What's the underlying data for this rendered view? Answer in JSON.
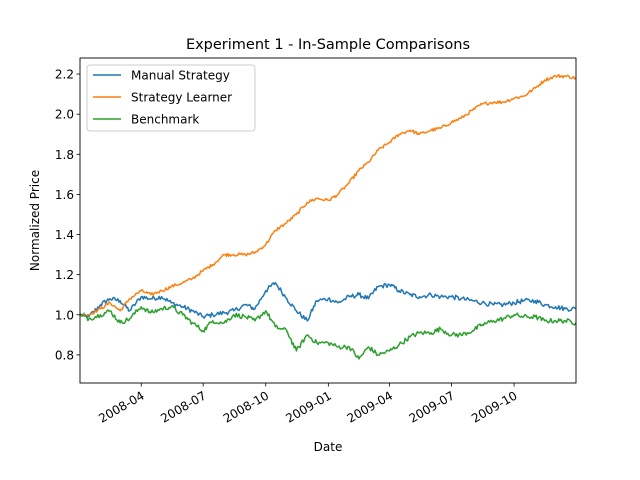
{
  "chart_data": {
    "type": "line",
    "title": "Experiment 1 - In-Sample Comparisons",
    "xlabel": "Date",
    "ylabel": "Normalized Price",
    "xlim": [
      "2008-01-02",
      "2009-12-31"
    ],
    "ylim": [
      0.66,
      2.28
    ],
    "grid": false,
    "legend_position": "upper-left",
    "x_ticks": [
      "2008-04",
      "2008-07",
      "2008-10",
      "2009-01",
      "2009-04",
      "2009-07",
      "2009-10"
    ],
    "y_ticks": [
      "0.8",
      "1.0",
      "1.2",
      "1.4",
      "1.6",
      "1.8",
      "2.0",
      "2.2"
    ],
    "x": [
      "2008-01-02",
      "2008-01-15",
      "2008-02-01",
      "2008-02-15",
      "2008-03-01",
      "2008-03-15",
      "2008-04-01",
      "2008-04-15",
      "2008-05-01",
      "2008-05-15",
      "2008-06-01",
      "2008-06-15",
      "2008-07-01",
      "2008-07-15",
      "2008-08-01",
      "2008-08-15",
      "2008-09-01",
      "2008-09-15",
      "2008-10-01",
      "2008-10-15",
      "2008-11-01",
      "2008-11-15",
      "2008-12-01",
      "2008-12-15",
      "2009-01-01",
      "2009-01-15",
      "2009-02-01",
      "2009-02-15",
      "2009-03-01",
      "2009-03-15",
      "2009-04-01",
      "2009-04-15",
      "2009-05-01",
      "2009-05-15",
      "2009-06-01",
      "2009-06-15",
      "2009-07-01",
      "2009-07-15",
      "2009-08-01",
      "2009-08-15",
      "2009-09-01",
      "2009-09-15",
      "2009-10-01",
      "2009-10-15",
      "2009-11-01",
      "2009-11-15",
      "2009-12-01",
      "2009-12-15",
      "2009-12-31"
    ],
    "series": [
      {
        "name": "Manual Strategy",
        "color": "#1f77b4",
        "values": [
          1.0,
          0.99,
          1.05,
          1.08,
          1.07,
          1.02,
          1.09,
          1.08,
          1.09,
          1.06,
          1.04,
          1.02,
          0.99,
          1.0,
          1.01,
          1.02,
          1.05,
          1.03,
          1.12,
          1.16,
          1.08,
          1.02,
          0.97,
          1.07,
          1.08,
          1.06,
          1.09,
          1.1,
          1.08,
          1.14,
          1.15,
          1.12,
          1.1,
          1.09,
          1.1,
          1.09,
          1.09,
          1.08,
          1.07,
          1.06,
          1.05,
          1.05,
          1.06,
          1.07,
          1.07,
          1.05,
          1.04,
          1.03,
          1.03
        ]
      },
      {
        "name": "Strategy Learner",
        "color": "#ff7f0e",
        "values": [
          1.0,
          1.0,
          1.03,
          1.06,
          1.02,
          1.08,
          1.12,
          1.1,
          1.12,
          1.14,
          1.16,
          1.18,
          1.22,
          1.25,
          1.3,
          1.3,
          1.3,
          1.31,
          1.35,
          1.42,
          1.46,
          1.5,
          1.56,
          1.58,
          1.57,
          1.6,
          1.66,
          1.72,
          1.76,
          1.82,
          1.86,
          1.9,
          1.92,
          1.9,
          1.92,
          1.93,
          1.96,
          1.98,
          2.02,
          2.05,
          2.06,
          2.06,
          2.08,
          2.09,
          2.13,
          2.17,
          2.19,
          2.19,
          2.18
        ]
      },
      {
        "name": "Benchmark",
        "color": "#2ca02c",
        "values": [
          1.0,
          0.98,
          1.0,
          1.02,
          0.96,
          0.98,
          1.04,
          1.01,
          1.03,
          1.04,
          1.0,
          0.96,
          0.92,
          0.97,
          0.96,
          1.0,
          0.99,
          0.97,
          1.02,
          0.94,
          0.92,
          0.82,
          0.9,
          0.86,
          0.86,
          0.84,
          0.84,
          0.78,
          0.84,
          0.8,
          0.82,
          0.85,
          0.89,
          0.91,
          0.91,
          0.93,
          0.9,
          0.9,
          0.92,
          0.95,
          0.97,
          0.98,
          1.0,
          0.99,
          0.99,
          0.97,
          0.97,
          0.97,
          0.96
        ]
      }
    ]
  }
}
